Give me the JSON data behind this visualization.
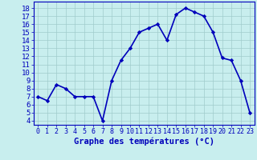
{
  "hours": [
    0,
    1,
    2,
    3,
    4,
    5,
    6,
    7,
    8,
    9,
    10,
    11,
    12,
    13,
    14,
    15,
    16,
    17,
    18,
    19,
    20,
    21,
    22,
    23
  ],
  "temps": [
    7,
    6.5,
    8.5,
    8,
    7,
    7,
    7,
    4,
    9,
    11.5,
    13,
    15,
    15.5,
    16,
    14,
    17.2,
    18,
    17.5,
    17,
    15,
    11.8,
    11.5,
    9,
    5
  ],
  "line_color": "#0000bb",
  "marker": "D",
  "marker_size": 2.2,
  "background_color": "#c8eeee",
  "grid_color": "#a0cccc",
  "xlabel": "Graphe des températures (°C)",
  "ylabel_ticks": [
    4,
    5,
    6,
    7,
    8,
    9,
    10,
    11,
    12,
    13,
    14,
    15,
    16,
    17,
    18
  ],
  "ylim": [
    3.5,
    18.8
  ],
  "xlim": [
    -0.5,
    23.5
  ],
  "tick_color": "#0000bb",
  "label_color": "#0000bb",
  "tick_fontsize": 6.5,
  "xlabel_fontsize": 7.5,
  "linewidth": 1.2
}
